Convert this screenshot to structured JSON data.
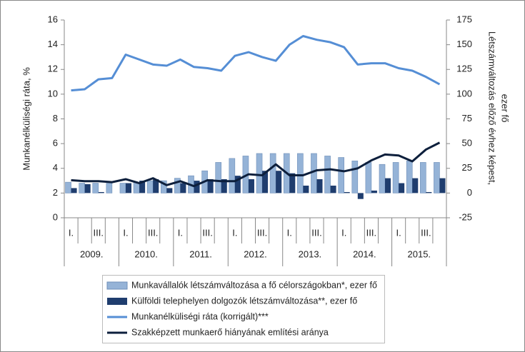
{
  "chart_data": {
    "type": "bar_line_combo",
    "ylabel": "Munkanélküliségi ráta, %",
    "y2label": [
      "Létszámváltozás előző évhez képest,",
      "ezer fő"
    ],
    "categories": [
      "I.",
      null,
      "III.",
      null,
      "I.",
      null,
      "III.",
      null,
      "I.",
      null,
      "III.",
      null,
      "I.",
      null,
      "III.",
      null,
      "I.",
      null,
      "III.",
      null,
      "I.",
      null,
      "III.",
      null,
      "I.",
      null,
      "III.",
      null
    ],
    "years": [
      "2009.",
      "2010.",
      "2011.",
      "2012.",
      "2013.",
      "2014.",
      "2015."
    ],
    "ylim": [
      0,
      16
    ],
    "yticks": [
      0,
      2,
      4,
      6,
      8,
      10,
      12,
      14,
      16
    ],
    "y2lim": [
      -25,
      175
    ],
    "y2ticks": [
      -25,
      0,
      25,
      50,
      75,
      100,
      125,
      150,
      175
    ],
    "series": [
      {
        "name": "Munkavállalók létszámváltozása a fő célországokban*, ezer fő",
        "kind": "bar",
        "axis": "y2",
        "color": "#95b3d7",
        "values": [
          11,
          10,
          10,
          10,
          10,
          11,
          12.5,
          12.5,
          15,
          17.5,
          22.5,
          31,
          35,
          37.5,
          40,
          40,
          40,
          40,
          40,
          37.5,
          36,
          32.5,
          31,
          29,
          31,
          32.5,
          31,
          31
        ]
      },
      {
        "name": "Külföldi telephelyen dolgozók létszámváltozása**, ezer fő",
        "kind": "bar",
        "axis": "y2",
        "color": "#1f3d6e",
        "values": [
          5,
          9,
          1,
          0,
          10,
          12.5,
          14,
          5,
          10,
          12.5,
          14,
          14,
          17.5,
          14,
          22.5,
          22.5,
          20,
          7.5,
          14,
          7.5,
          1,
          -6,
          2.5,
          15,
          10,
          15,
          1,
          15
        ]
      },
      {
        "name": "Munkanélküliségi ráta (korrigált)***",
        "kind": "line",
        "color": "#558ed5",
        "values": [
          10.3,
          10.4,
          11.2,
          11.3,
          13.2,
          12.8,
          12.4,
          12.3,
          12.8,
          12.2,
          12.1,
          11.9,
          13.1,
          13.4,
          13.0,
          12.7,
          14.0,
          14.7,
          14.4,
          14.2,
          13.8,
          12.4,
          12.5,
          12.5,
          12.1,
          11.9,
          11.4,
          10.8
        ]
      },
      {
        "name": "Szakképzett munkaerő hiányának említési aránya",
        "kind": "line",
        "axis": "y2",
        "color": "#0d1f3c",
        "values": [
          13,
          12,
          12,
          11,
          14,
          10,
          15,
          8,
          12,
          7,
          13,
          12,
          12,
          19,
          18,
          29,
          18,
          18,
          23,
          24,
          22,
          25,
          33,
          39,
          38,
          32,
          44,
          51
        ]
      }
    ]
  }
}
